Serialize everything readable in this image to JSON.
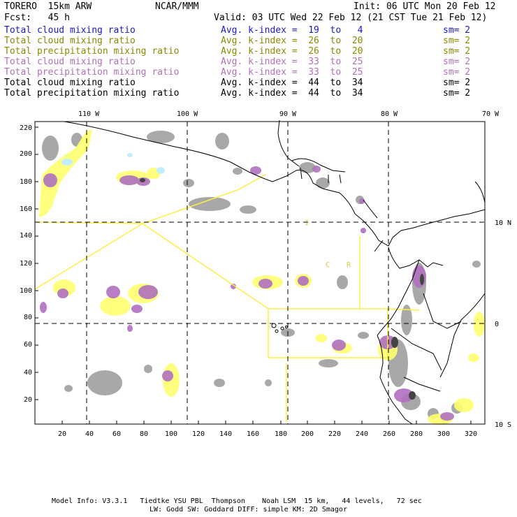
{
  "header": {
    "model": "TORERO  15km ARW",
    "org": "NCAR/MMM",
    "init": "Init: 06 UTC Mon 20 Feb 12",
    "fcst": "Fcst:   45 h",
    "valid": "Valid: 03 UTC Wed 22 Feb 12 (21 CST Tue 21 Feb 12)"
  },
  "legend": [
    {
      "field": "Total cloud mixing ratio",
      "kindex": "Avg. k-index =  19  to   4",
      "sm": "sm= 2",
      "color": "#1a1acc"
    },
    {
      "field": "Total cloud mixing ratio",
      "kindex": "Avg. k-index =  26  to  20",
      "sm": "sm= 2",
      "color": "#8a8a00"
    },
    {
      "field": "Total precipitation mixing ratio",
      "kindex": "Avg. k-index =  26  to  20",
      "sm": "sm= 2",
      "color": "#8a8a00"
    },
    {
      "field": "Total cloud mixing ratio",
      "kindex": "Avg. k-index =  33  to  25",
      "sm": "sm= 2",
      "color": "#b070b8"
    },
    {
      "field": "Total precipitation mixing ratio",
      "kindex": "Avg. k-index =  33  to  25",
      "sm": "sm= 2",
      "color": "#b070b8"
    },
    {
      "field": "Total cloud mixing ratio",
      "kindex": "Avg. k-index =  44  to  34",
      "sm": "sm= 2",
      "color": "#000000"
    },
    {
      "field": "Total precipitation mixing ratio",
      "kindex": "Avg. k-index =  44  to  34",
      "sm": "sm= 2",
      "color": "#000000"
    }
  ],
  "map": {
    "top_longitude_labels": [
      "110 W",
      "100 W",
      "90 W",
      "80 W",
      "70 W"
    ],
    "right_latitude_labels": [
      "10 N",
      "0",
      "10 S"
    ],
    "left_grid_ticks": [
      "220",
      "200",
      "180",
      "160",
      "140",
      "120",
      "100",
      "80",
      "60",
      "40",
      "20"
    ],
    "bottom_grid_ticks": [
      "20",
      "40",
      "60",
      "80",
      "100",
      "120",
      "140",
      "160",
      "180",
      "200",
      "220",
      "240",
      "260",
      "280",
      "300",
      "320"
    ],
    "region_letters": [
      "I",
      "C",
      "R"
    ],
    "colors": {
      "gray_cloud": "#9a9a9a",
      "yellow_precip": "#ffff70",
      "purple_precip": "#b070c0",
      "cyan": "#c0eeff",
      "outline_yellow": "#ffee44",
      "coastline": "#000000"
    }
  },
  "footer": {
    "line1": "Model Info: V3.3.1   Tiedtke YSU PBL  Thompson    Noah LSM  15 km,   44 levels,   72 sec",
    "line2": "LW: Godd SW: Goddard DIFF: simple KM: 2D Smagor"
  }
}
